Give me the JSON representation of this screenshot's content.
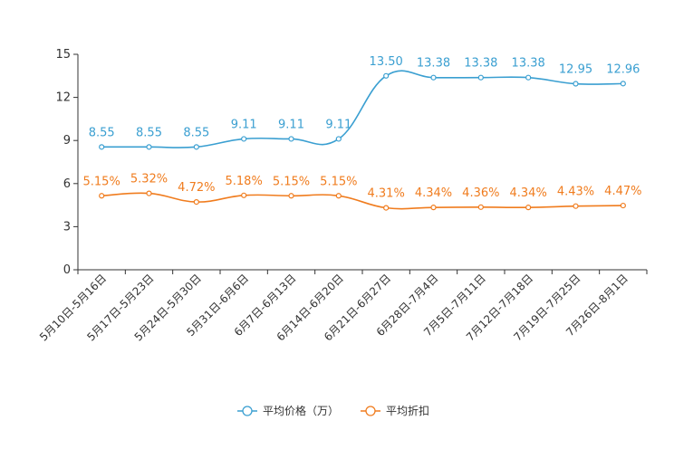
{
  "chart_data": {
    "type": "line",
    "categories": [
      "5月10日-5月16日",
      "5月17日-5月23日",
      "5月24日-5月30日",
      "5月31日-6月6日",
      "6月7日-6月13日",
      "6月14日-6月20日",
      "6月21日-6月27日",
      "6月28日-7月4日",
      "7月5日-7月11日",
      "7月12日-7月18日",
      "7月19日-7月25日",
      "7月26日-8月1日"
    ],
    "ylim": [
      0,
      15
    ],
    "yticks": [
      0,
      3,
      6,
      9,
      12,
      15
    ],
    "series": [
      {
        "name": "平均价格（万）",
        "color": "#3a9fd1",
        "values": [
          8.55,
          8.55,
          8.55,
          9.11,
          9.11,
          9.11,
          13.5,
          13.38,
          13.38,
          13.38,
          12.95,
          12.96
        ],
        "labels": [
          "8.55",
          "8.55",
          "8.55",
          "9.11",
          "9.11",
          "9.11",
          "13.50",
          "13.38",
          "13.38",
          "13.38",
          "12.95",
          "12.96"
        ]
      },
      {
        "name": "平均折扣",
        "color": "#f07c1e",
        "values": [
          5.15,
          5.32,
          4.72,
          5.18,
          5.15,
          5.15,
          4.31,
          4.34,
          4.36,
          4.34,
          4.43,
          4.47
        ],
        "labels": [
          "5.15%",
          "5.32%",
          "4.72%",
          "5.18%",
          "5.15%",
          "5.15%",
          "4.31%",
          "4.34%",
          "4.36%",
          "4.34%",
          "4.43%",
          "4.47%"
        ]
      }
    ],
    "legend_position": "bottom"
  }
}
